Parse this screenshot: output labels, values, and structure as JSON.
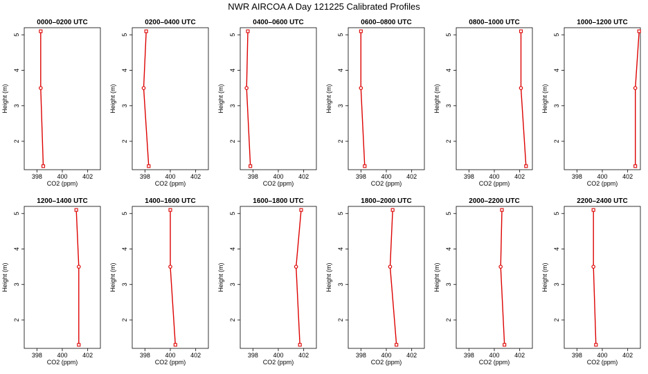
{
  "figure": {
    "title": "NWR AIRCOA A  Day 121225  Calibrated Profiles"
  },
  "colors": {
    "series": "#dd0000",
    "axis": "#000000",
    "background": "#ffffff"
  },
  "chart_data": [
    {
      "type": "line",
      "title": "0000–0200 UTC",
      "xlabel": "CO2 (ppm)",
      "ylabel": "Height (m)",
      "xlim": [
        397,
        403
      ],
      "ylim": [
        1.2,
        5.2
      ],
      "xticks": [
        "398",
        "400",
        "402"
      ],
      "yticks": [
        "2",
        "3",
        "4",
        "5"
      ],
      "grid": false,
      "series": [
        {
          "x": [
            398.5,
            398.3,
            398.3
          ],
          "y": [
            1.3,
            3.5,
            5.1
          ]
        }
      ]
    },
    {
      "type": "line",
      "title": "0200–0400 UTC",
      "xlabel": "CO2 (ppm)",
      "ylabel": "Height (m)",
      "xlim": [
        397,
        403
      ],
      "ylim": [
        1.2,
        5.2
      ],
      "xticks": [
        "398",
        "400",
        "402"
      ],
      "yticks": [
        "2",
        "3",
        "4",
        "5"
      ],
      "grid": false,
      "series": [
        {
          "x": [
            398.3,
            397.9,
            398.1
          ],
          "y": [
            1.3,
            3.5,
            5.1
          ]
        }
      ]
    },
    {
      "type": "line",
      "title": "0400–0600 UTC",
      "xlabel": "CO2 (ppm)",
      "ylabel": "Height (m)",
      "xlim": [
        397,
        403
      ],
      "ylim": [
        1.2,
        5.2
      ],
      "xticks": [
        "398",
        "400",
        "402"
      ],
      "yticks": [
        "2",
        "3",
        "4",
        "5"
      ],
      "grid": false,
      "series": [
        {
          "x": [
            397.8,
            397.5,
            397.6
          ],
          "y": [
            1.3,
            3.5,
            5.1
          ]
        }
      ]
    },
    {
      "type": "line",
      "title": "0600–0800 UTC",
      "xlabel": "CO2 (ppm)",
      "ylabel": "Height (m)",
      "xlim": [
        397,
        403
      ],
      "ylim": [
        1.2,
        5.2
      ],
      "xticks": [
        "398",
        "400",
        "402"
      ],
      "yticks": [
        "2",
        "3",
        "4",
        "5"
      ],
      "grid": false,
      "series": [
        {
          "x": [
            398.3,
            398.0,
            398.0
          ],
          "y": [
            1.3,
            3.5,
            5.1
          ]
        }
      ]
    },
    {
      "type": "line",
      "title": "0800–1000 UTC",
      "xlabel": "CO2 (ppm)",
      "ylabel": "Height (m)",
      "xlim": [
        397,
        403
      ],
      "ylim": [
        1.2,
        5.2
      ],
      "xticks": [
        "398",
        "400",
        "402"
      ],
      "yticks": [
        "2",
        "3",
        "4",
        "5"
      ],
      "grid": false,
      "series": [
        {
          "x": [
            402.5,
            402.1,
            402.1
          ],
          "y": [
            1.3,
            3.5,
            5.1
          ]
        }
      ]
    },
    {
      "type": "line",
      "title": "1000–1200 UTC",
      "xlabel": "CO2 (ppm)",
      "ylabel": "Height (m)",
      "xlim": [
        397,
        403
      ],
      "ylim": [
        1.2,
        5.2
      ],
      "xticks": [
        "398",
        "400",
        "402"
      ],
      "yticks": [
        "2",
        "3",
        "4",
        "5"
      ],
      "grid": false,
      "series": [
        {
          "x": [
            402.6,
            402.6,
            402.9
          ],
          "y": [
            1.3,
            3.5,
            5.1
          ]
        }
      ]
    },
    {
      "type": "line",
      "title": "1200–1400 UTC",
      "xlabel": "CO2 (ppm)",
      "ylabel": "Height (m)",
      "xlim": [
        397,
        403
      ],
      "ylim": [
        1.2,
        5.2
      ],
      "xticks": [
        "398",
        "400",
        "402"
      ],
      "yticks": [
        "2",
        "3",
        "4",
        "5"
      ],
      "grid": false,
      "series": [
        {
          "x": [
            401.3,
            401.3,
            401.1
          ],
          "y": [
            1.3,
            3.5,
            5.1
          ]
        }
      ]
    },
    {
      "type": "line",
      "title": "1400–1600 UTC",
      "xlabel": "CO2 (ppm)",
      "ylabel": "Height (m)",
      "xlim": [
        397,
        403
      ],
      "ylim": [
        1.2,
        5.2
      ],
      "xticks": [
        "398",
        "400",
        "402"
      ],
      "yticks": [
        "2",
        "3",
        "4",
        "5"
      ],
      "grid": false,
      "series": [
        {
          "x": [
            400.4,
            400.0,
            400.0
          ],
          "y": [
            1.3,
            3.5,
            5.1
          ]
        }
      ]
    },
    {
      "type": "line",
      "title": "1600–1800 UTC",
      "xlabel": "CO2 (ppm)",
      "ylabel": "Height (m)",
      "xlim": [
        397,
        403
      ],
      "ylim": [
        1.2,
        5.2
      ],
      "xticks": [
        "398",
        "400",
        "402"
      ],
      "yticks": [
        "2",
        "3",
        "4",
        "5"
      ],
      "grid": false,
      "series": [
        {
          "x": [
            401.7,
            401.4,
            401.8
          ],
          "y": [
            1.3,
            3.5,
            5.1
          ]
        }
      ]
    },
    {
      "type": "line",
      "title": "1800–2000 UTC",
      "xlabel": "CO2 (ppm)",
      "ylabel": "Height (m)",
      "xlim": [
        397,
        403
      ],
      "ylim": [
        1.2,
        5.2
      ],
      "xticks": [
        "398",
        "400",
        "402"
      ],
      "yticks": [
        "2",
        "3",
        "4",
        "5"
      ],
      "grid": false,
      "series": [
        {
          "x": [
            400.8,
            400.3,
            400.5
          ],
          "y": [
            1.3,
            3.5,
            5.1
          ]
        }
      ]
    },
    {
      "type": "line",
      "title": "2000–2200 UTC",
      "xlabel": "CO2 (ppm)",
      "ylabel": "Height (m)",
      "xlim": [
        397,
        403
      ],
      "ylim": [
        1.2,
        5.2
      ],
      "xticks": [
        "398",
        "400",
        "402"
      ],
      "yticks": [
        "2",
        "3",
        "4",
        "5"
      ],
      "grid": false,
      "series": [
        {
          "x": [
            400.8,
            400.5,
            400.6
          ],
          "y": [
            1.3,
            3.5,
            5.1
          ]
        }
      ]
    },
    {
      "type": "line",
      "title": "2200–2400 UTC",
      "xlabel": "CO2 (ppm)",
      "ylabel": "Height (m)",
      "xlim": [
        397,
        403
      ],
      "ylim": [
        1.2,
        5.2
      ],
      "xticks": [
        "398",
        "400",
        "402"
      ],
      "yticks": [
        "2",
        "3",
        "4",
        "5"
      ],
      "grid": false,
      "series": [
        {
          "x": [
            399.5,
            399.3,
            399.3
          ],
          "y": [
            1.3,
            3.5,
            5.1
          ]
        }
      ]
    }
  ]
}
